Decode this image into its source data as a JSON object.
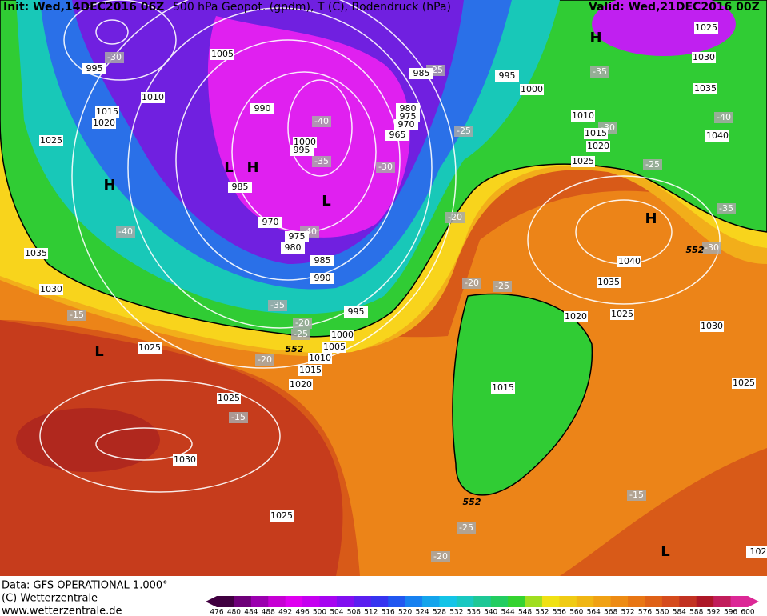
{
  "header": {
    "init": "Init: Wed,14DEC2016 06Z",
    "title": "500 hPa Geopot. (gpdm), T (C), Bodendruck (hPa)",
    "valid": "Valid: Wed,21DEC2016 00Z"
  },
  "map": {
    "isobar_labels": [
      "995",
      "1005",
      "1010",
      "1015",
      "1020",
      "1025",
      "990",
      "1000",
      "995",
      "985",
      "970",
      "975",
      "980",
      "985",
      "990",
      "995",
      "1000",
      "1005",
      "1010",
      "1015",
      "1020",
      "1025",
      "1035",
      "1030",
      "1025",
      "1030",
      "1025",
      "980",
      "975",
      "970",
      "965",
      "985",
      "995",
      "1000",
      "1010",
      "1015",
      "1020",
      "1025",
      "1040",
      "1035",
      "1025",
      "1020",
      "1030",
      "1015",
      "1025",
      "1025",
      "1030",
      "1035",
      "1040",
      "102"
    ],
    "temperature_labels": [
      "-30",
      "-40",
      "-35",
      "-30",
      "-40",
      "-35",
      "-20",
      "-25",
      "-20",
      "-15",
      "-40",
      "-25",
      "-20",
      "-20",
      "-25",
      "-35",
      "-25",
      "-25",
      "-40",
      "-35",
      "-30",
      "-15",
      "-15",
      "-25",
      "-20",
      "-30"
    ],
    "geopotential_labels": [
      "552",
      "552",
      "552"
    ],
    "pressure_centers": [
      "H",
      "L",
      "H",
      "L",
      "H",
      "H",
      "L",
      "L"
    ]
  },
  "footer": {
    "data": "Data: GFS OPERATIONAL 1.000°",
    "copyright": "(C) Wetterzentrale",
    "url": "www.wetterzentrale.de"
  },
  "colorbar": {
    "labels": [
      476,
      480,
      484,
      488,
      492,
      496,
      500,
      504,
      508,
      512,
      516,
      520,
      524,
      528,
      532,
      536,
      540,
      544,
      548,
      552,
      556,
      560,
      564,
      568,
      572,
      576,
      580,
      584,
      588,
      592,
      596,
      600
    ]
  }
}
